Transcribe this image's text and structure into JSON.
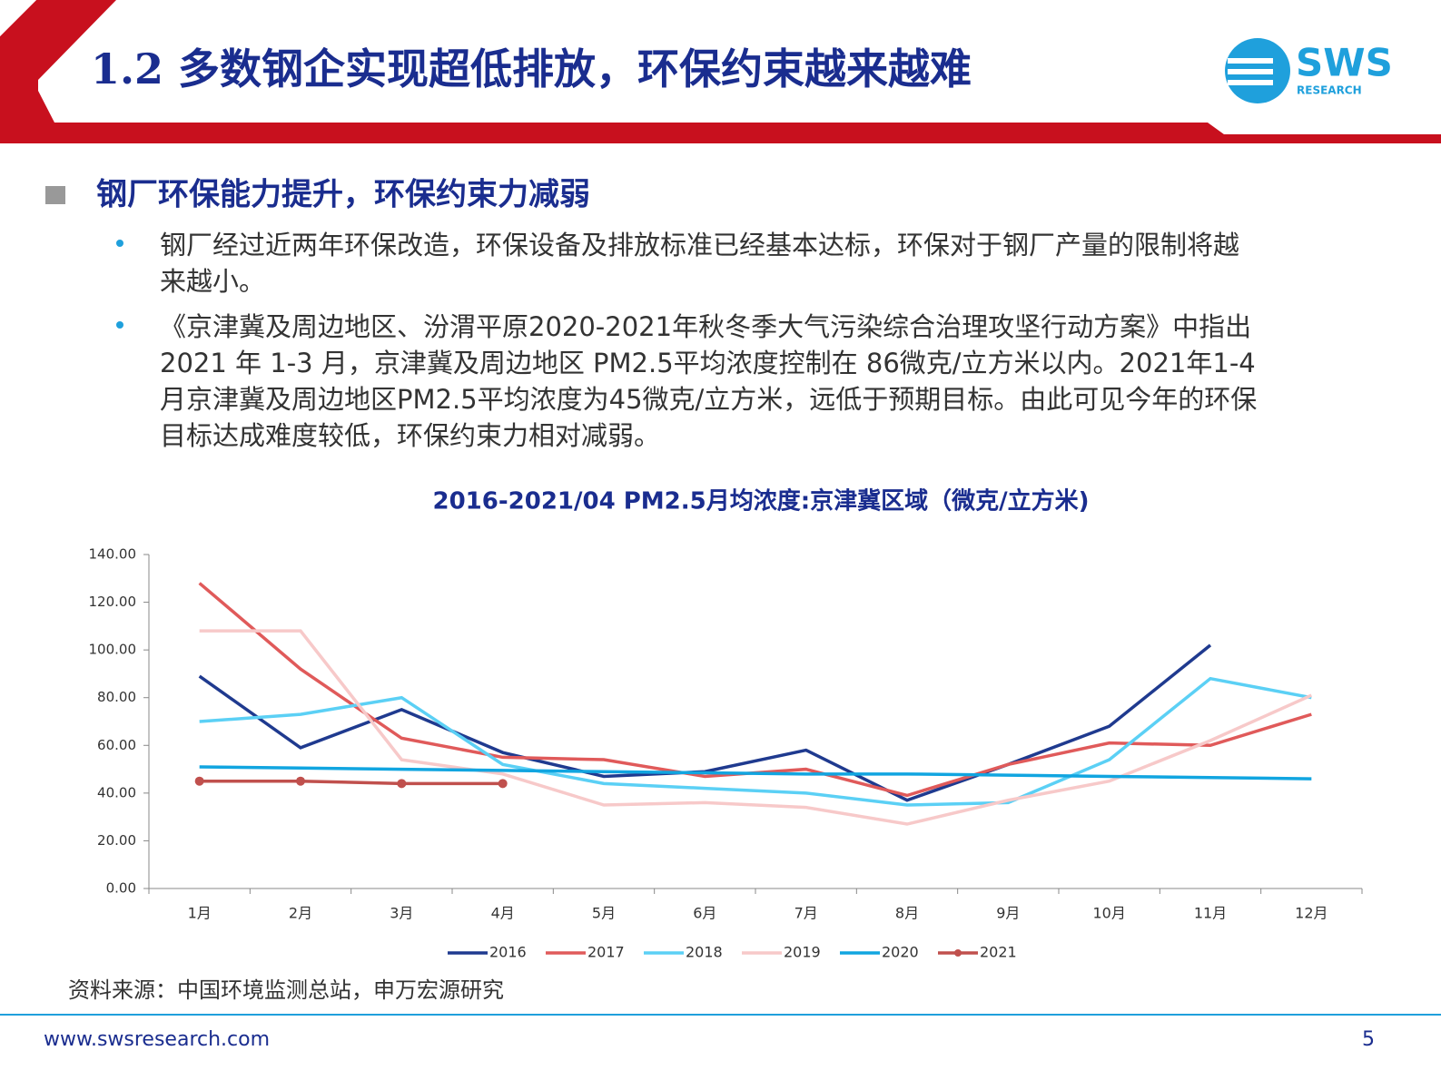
{
  "header": {
    "title": "1.2 多数钢企实现超低排放，环保约束越来越难",
    "logo": "SWS",
    "logo_sub": "RESEARCH"
  },
  "section": {
    "heading": "钢厂环保能力提升，环保约束力减弱",
    "bullets": [
      [
        "钢厂经过近两年环保改造，环保设备及排放标准已经基本达标，环保对于钢厂产量的限制将越",
        "来越小。"
      ],
      [
        "《京津冀及周边地区、汾渭平原2020-2021年秋冬季大气污染综合治理攻坚行动方案》中指出",
        "2021 年 1-3 月，京津冀及周边地区 PM2.5平均浓度控制在 86微克/立方米以内。2021年1-4",
        "月京津冀及周边地区PM2.5平均浓度为45微克/立方米，远低于预期目标。由此可见今年的环保",
        "目标达成难度较低，环保约束力相对减弱。"
      ]
    ]
  },
  "chart_data": {
    "type": "line",
    "title": "2016-2021/04 PM2.5月均浓度:京津冀区域（微克/立方米)",
    "categories": [
      "1月",
      "2月",
      "3月",
      "4月",
      "5月",
      "6月",
      "7月",
      "8月",
      "9月",
      "10月",
      "11月",
      "12月"
    ],
    "series": [
      {
        "name": "2016",
        "color": "#1f3a8f",
        "values": [
          89,
          59,
          75,
          57,
          47,
          49,
          58,
          37,
          52,
          68,
          102,
          null
        ]
      },
      {
        "name": "2017",
        "color": "#e05a5a",
        "values": [
          128,
          92,
          63,
          55,
          54,
          47,
          50,
          39,
          52,
          61,
          60,
          73
        ]
      },
      {
        "name": "2018",
        "color": "#5bd0f5",
        "values": [
          70,
          73,
          80,
          52,
          44,
          42,
          40,
          35,
          36,
          54,
          88,
          80
        ]
      },
      {
        "name": "2019",
        "color": "#f7c9c9",
        "values": [
          108,
          108,
          54,
          48,
          35,
          36,
          34,
          27,
          37,
          45,
          62,
          81
        ]
      },
      {
        "name": "2020",
        "color": "#11a5e0",
        "values": [
          51,
          50.5,
          50,
          49.5,
          49,
          48.5,
          48,
          48,
          47.5,
          47,
          46.5,
          46
        ]
      },
      {
        "name": "2021",
        "color": "#c0504d",
        "markers": true,
        "values": [
          45,
          45,
          44,
          44,
          null,
          null,
          null,
          null,
          null,
          null,
          null,
          null
        ]
      }
    ],
    "ylim": [
      0,
      140
    ],
    "yticks": [
      {
        "value": 0,
        "label": "0.00"
      },
      {
        "value": 20,
        "label": "20.00"
      },
      {
        "value": 40,
        "label": "40.00"
      },
      {
        "value": 60,
        "label": "60.00"
      },
      {
        "value": 80,
        "label": "80.00"
      },
      {
        "value": 100,
        "label": "100.00"
      },
      {
        "value": 120,
        "label": "120.00"
      },
      {
        "value": 140,
        "label": "140.00"
      }
    ],
    "grid": false,
    "legend": "bottom"
  },
  "footer": {
    "source": "资料来源：中国环境监测总站，申万宏源研究",
    "url": "www.swsresearch.com",
    "page": "5"
  }
}
